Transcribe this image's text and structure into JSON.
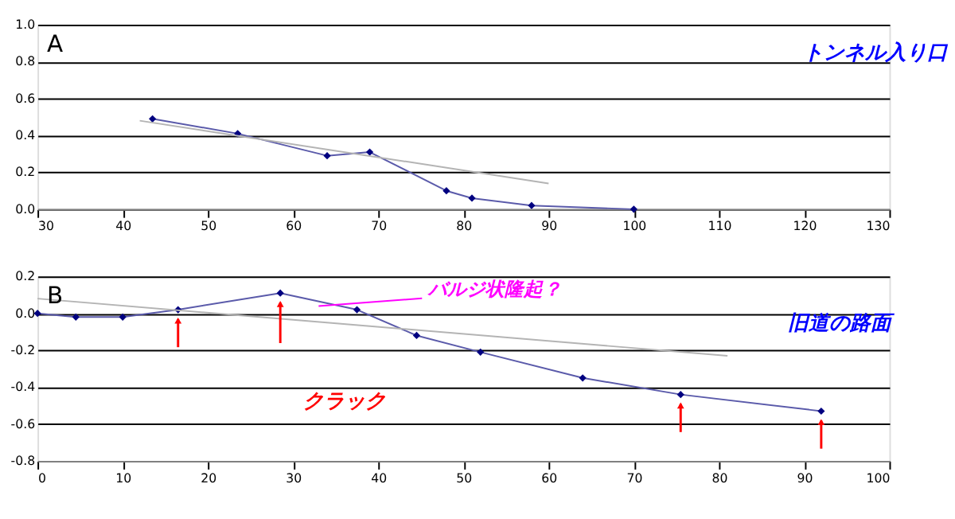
{
  "chart_data": [
    {
      "type": "line",
      "x": [
        43.5,
        53.5,
        64,
        69,
        78,
        81,
        88,
        100
      ],
      "series": [
        {
          "color": "#000080",
          "values": [
            0.49,
            0.41,
            0.29,
            0.31,
            0.1,
            0.06,
            0.02,
            0.0
          ]
        },
        {
          "type": "line",
          "color": "#b4b4b4",
          "x": [
            42,
            90
          ],
          "values": [
            0.48,
            0.14
          ],
          "marker": "none"
        }
      ],
      "xlim": [
        30,
        130
      ],
      "xticks": [
        30,
        40,
        50,
        60,
        70,
        80,
        90,
        100,
        110,
        120,
        130
      ],
      "ylim": [
        0,
        1.0
      ],
      "yticks": [
        {
          "value": 0,
          "label": "0.0"
        },
        0.2,
        0.4,
        0.6,
        0.8,
        {
          "value": 1,
          "label": "1.0"
        }
      ],
      "grid": "y",
      "marker": "diamond",
      "annotations": [
        "A",
        "トンネル入り口"
      ]
    },
    {
      "type": "line",
      "x": [
        0,
        4.5,
        10,
        16.5,
        28.5,
        37.5,
        44.5,
        52,
        64,
        75.5,
        92
      ],
      "series": [
        {
          "color": "#000080",
          "values": [
            0,
            -0.02,
            -0.02,
            0.02,
            0.11,
            0.02,
            -0.12,
            -0.21,
            -0.35,
            -0.44,
            -0.53
          ]
        },
        {
          "type": "line",
          "color": "#b4b4b4",
          "x": [
            0,
            81
          ],
          "values": [
            0.08,
            -0.23
          ],
          "marker": "none"
        }
      ],
      "xlim": [
        0,
        100
      ],
      "xticks": [
        0,
        10,
        20,
        30,
        40,
        50,
        60,
        70,
        80,
        90,
        100
      ],
      "ylim": [
        -0.8,
        0.2
      ],
      "yticks": [
        {
          "value": -0.8,
          "label": "-0.8"
        },
        {
          "value": -0.6,
          "label": "-0.6"
        },
        {
          "value": -0.4,
          "label": "-0.4"
        },
        {
          "value": -0.2,
          "label": "-0.2"
        },
        {
          "value": 0,
          "label": "0.0"
        },
        0.2
      ],
      "grid": "y",
      "marker": "diamond",
      "annotations": [
        "B",
        {
          "text": "バルジ状隆起？",
          "x": 33,
          "y": 0.04
        },
        "旧道の路面",
        "クラック"
      ]
    }
  ]
}
